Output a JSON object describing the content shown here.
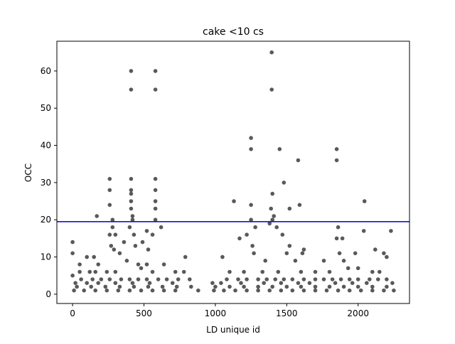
{
  "chart_data": {
    "type": "scatter",
    "title": "cake <10 cs",
    "xlabel": "LD unique id",
    "ylabel": "OCC",
    "xlim": [
      -110,
      2360
    ],
    "ylim": [
      -2.5,
      68
    ],
    "xticks": [
      0,
      500,
      1000,
      1500,
      2000
    ],
    "xtick_labels": [
      "0",
      "500",
      "1000",
      "1500",
      "2000"
    ],
    "yticks": [
      0,
      10,
      20,
      30,
      40,
      50,
      60
    ],
    "ytick_labels": [
      "0",
      "10",
      "20",
      "30",
      "40",
      "50",
      "60"
    ],
    "grid": false,
    "marker_color": "#000000",
    "marker_alpha": 0.65,
    "reference_line": {
      "orientation": "horizontal",
      "y": 19.5,
      "color": "#0000cc"
    },
    "series": [
      {
        "points": [
          [
            410,
            60
          ],
          [
            580,
            60
          ],
          [
            410,
            55
          ],
          [
            580,
            55
          ],
          [
            1395,
            65
          ],
          [
            1395,
            55
          ],
          [
            1250,
            42
          ],
          [
            1250,
            39
          ],
          [
            1450,
            39
          ],
          [
            1850,
            39
          ],
          [
            1850,
            36
          ],
          [
            1580,
            36
          ],
          [
            1480,
            30
          ],
          [
            2045,
            25
          ],
          [
            1130,
            25
          ],
          [
            1590,
            24
          ],
          [
            1250,
            24
          ],
          [
            1400,
            27
          ],
          [
            260,
            31
          ],
          [
            410,
            31
          ],
          [
            580,
            31
          ],
          [
            260,
            28
          ],
          [
            410,
            28
          ],
          [
            580,
            28
          ],
          [
            410,
            27
          ],
          [
            260,
            24
          ],
          [
            410,
            25
          ],
          [
            580,
            25
          ],
          [
            580,
            23
          ],
          [
            410,
            23
          ],
          [
            170,
            21
          ],
          [
            420,
            21
          ],
          [
            1390,
            23
          ],
          [
            1410,
            21
          ],
          [
            1520,
            23
          ],
          [
            1860,
            18
          ],
          [
            1380,
            19
          ],
          [
            280,
            20
          ],
          [
            420,
            20
          ],
          [
            580,
            20
          ],
          [
            1400,
            20
          ],
          [
            1430,
            18
          ],
          [
            280,
            18
          ],
          [
            400,
            18
          ],
          [
            520,
            17
          ],
          [
            620,
            18
          ],
          [
            1250,
            20
          ],
          [
            1280,
            18
          ],
          [
            260,
            16
          ],
          [
            300,
            16
          ],
          [
            430,
            16
          ],
          [
            560,
            16
          ],
          [
            1220,
            16
          ],
          [
            1470,
            16
          ],
          [
            2040,
            17
          ],
          [
            2230,
            17
          ],
          [
            1850,
            15
          ],
          [
            1890,
            15
          ],
          [
            1170,
            15
          ],
          [
            360,
            14
          ],
          [
            490,
            14
          ],
          [
            0,
            14
          ],
          [
            270,
            13
          ],
          [
            440,
            13
          ],
          [
            1260,
            13
          ],
          [
            1520,
            13
          ],
          [
            1620,
            12
          ],
          [
            1500,
            11
          ],
          [
            290,
            12
          ],
          [
            530,
            12
          ],
          [
            0,
            11
          ],
          [
            100,
            10
          ],
          [
            150,
            10
          ],
          [
            330,
            11
          ],
          [
            1270,
            11
          ],
          [
            1610,
            11
          ],
          [
            1870,
            11
          ],
          [
            1980,
            11
          ],
          [
            2120,
            12
          ],
          [
            2180,
            11
          ],
          [
            790,
            10
          ],
          [
            1050,
            10
          ],
          [
            2200,
            10
          ],
          [
            50,
            8
          ],
          [
            180,
            8
          ],
          [
            380,
            9
          ],
          [
            460,
            8
          ],
          [
            520,
            8
          ],
          [
            640,
            8
          ],
          [
            1350,
            9
          ],
          [
            1560,
            9
          ],
          [
            1760,
            9
          ],
          [
            1900,
            9
          ],
          [
            1930,
            7
          ],
          [
            50,
            6
          ],
          [
            120,
            6
          ],
          [
            160,
            6
          ],
          [
            240,
            6
          ],
          [
            300,
            6
          ],
          [
            480,
            7
          ],
          [
            560,
            6
          ],
          [
            720,
            6
          ],
          [
            780,
            6
          ],
          [
            1100,
            6
          ],
          [
            1200,
            6
          ],
          [
            1330,
            6
          ],
          [
            1440,
            6
          ],
          [
            1600,
            6
          ],
          [
            1700,
            6
          ],
          [
            1800,
            6
          ],
          [
            2000,
            7
          ],
          [
            2100,
            6
          ],
          [
            2150,
            6
          ],
          [
            0,
            5
          ],
          [
            60,
            4
          ],
          [
            140,
            4
          ],
          [
            200,
            4
          ],
          [
            260,
            4
          ],
          [
            340,
            4
          ],
          [
            400,
            4
          ],
          [
            460,
            4
          ],
          [
            520,
            4
          ],
          [
            600,
            4
          ],
          [
            660,
            4
          ],
          [
            740,
            4
          ],
          [
            820,
            4
          ],
          [
            1080,
            4
          ],
          [
            1160,
            4
          ],
          [
            1220,
            4
          ],
          [
            1300,
            4
          ],
          [
            1360,
            4
          ],
          [
            1420,
            4
          ],
          [
            1480,
            4
          ],
          [
            1540,
            4
          ],
          [
            1620,
            4
          ],
          [
            1700,
            4
          ],
          [
            1760,
            4
          ],
          [
            1820,
            4
          ],
          [
            1880,
            4
          ],
          [
            1940,
            4
          ],
          [
            2000,
            4
          ],
          [
            2080,
            4
          ],
          [
            2140,
            4
          ],
          [
            2200,
            4
          ],
          [
            20,
            3
          ],
          [
            100,
            3
          ],
          [
            180,
            3
          ],
          [
            300,
            3
          ],
          [
            420,
            3
          ],
          [
            540,
            3
          ],
          [
            700,
            3
          ],
          [
            980,
            3
          ],
          [
            1040,
            3
          ],
          [
            1180,
            3
          ],
          [
            1340,
            3
          ],
          [
            1460,
            3
          ],
          [
            1580,
            3
          ],
          [
            1660,
            3
          ],
          [
            1840,
            3
          ],
          [
            1960,
            3
          ],
          [
            2060,
            3
          ],
          [
            2240,
            3
          ],
          [
            30,
            2
          ],
          [
            130,
            2
          ],
          [
            230,
            2
          ],
          [
            330,
            2
          ],
          [
            430,
            2
          ],
          [
            530,
            2
          ],
          [
            630,
            2
          ],
          [
            730,
            2
          ],
          [
            830,
            2
          ],
          [
            1000,
            2
          ],
          [
            1100,
            2
          ],
          [
            1200,
            2
          ],
          [
            1300,
            2
          ],
          [
            1400,
            2
          ],
          [
            1500,
            2
          ],
          [
            1600,
            2
          ],
          [
            1700,
            2
          ],
          [
            1800,
            2
          ],
          [
            1900,
            2
          ],
          [
            2000,
            2
          ],
          [
            2100,
            2
          ],
          [
            2200,
            2
          ],
          [
            10,
            1
          ],
          [
            80,
            1
          ],
          [
            160,
            1
          ],
          [
            240,
            1
          ],
          [
            320,
            1
          ],
          [
            400,
            1
          ],
          [
            480,
            1
          ],
          [
            560,
            1
          ],
          [
            640,
            1
          ],
          [
            720,
            1
          ],
          [
            880,
            1
          ],
          [
            990,
            1
          ],
          [
            1060,
            1
          ],
          [
            1140,
            1
          ],
          [
            1220,
            1
          ],
          [
            1300,
            1
          ],
          [
            1380,
            1
          ],
          [
            1460,
            1
          ],
          [
            1540,
            1
          ],
          [
            1620,
            1
          ],
          [
            1700,
            1
          ],
          [
            1780,
            1
          ],
          [
            1860,
            1
          ],
          [
            1940,
            1
          ],
          [
            2020,
            1
          ],
          [
            2100,
            1
          ],
          [
            2180,
            1
          ],
          [
            2250,
            1
          ]
        ]
      }
    ]
  }
}
